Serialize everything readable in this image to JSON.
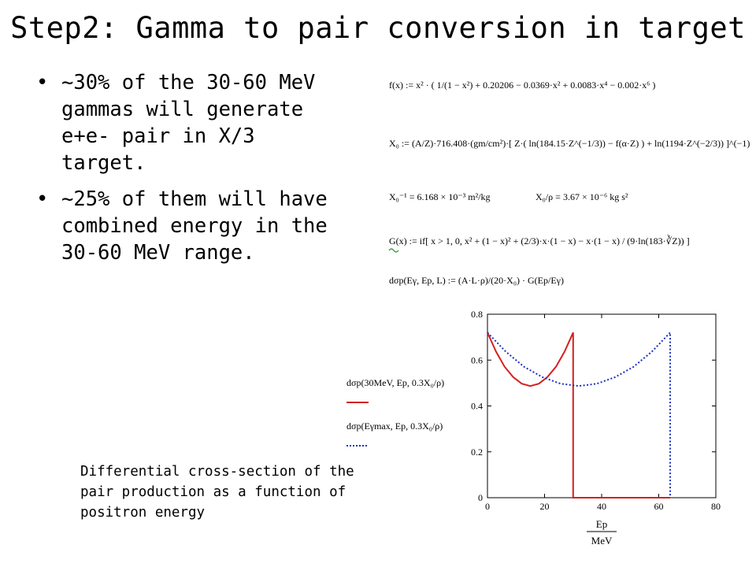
{
  "slide": {
    "title": "Step2: Gamma to pair conversion in target",
    "bullets": [
      "~30% of the 30-60 MeV gammas will generate e+e- pair in X/3 target.",
      "~25% of them will have combined energy in the 30-60 MeV range."
    ],
    "caption": "Differential cross-section of the pair production as a function of positron energy"
  },
  "equations": {
    "f": "f(x) := x² · ( 1/(1 − x²) + 0.20206 − 0.0369·x² + 0.0083·x⁴ − 0.002·x⁶ )",
    "X0": "X₀ := (A/Z)·716.408·(gm/cm²)·[ Z·( ln(184.15·Z^(−1/3)) − f(α·Z) ) + ln(1194·Z^(−2/3)) ]^(−1)",
    "X0inv": "X₀⁻¹ = 6.168 × 10⁻³ m²/kg",
    "X0rho": "X₀/ρ = 3.67 × 10⁻⁶ kg s²",
    "G": "G(x) := if[ x > 1, 0, x² + (1 − x)² + (2/3)·x·(1 − x) − x·(1 − x) / (9·ln(183·∛Z)) ]",
    "dsigma": "dσp(Eγ, Ep, L) := (A·L·ρ)/(20·X₀) · G(Ep/Eγ)"
  },
  "chart_data": {
    "type": "line",
    "xlim": [
      0,
      80
    ],
    "ylim": [
      0,
      0.8
    ],
    "xticks": [
      "0",
      "20",
      "40",
      "60",
      "80"
    ],
    "yticks": [
      "0",
      "0.2",
      "0.4",
      "0.6",
      "0.8"
    ],
    "xlabel_num": "Ep",
    "xlabel_den": "MeV",
    "legend": {
      "red": "dσp(30MeV, Ep, 0.3X₀/ρ)",
      "blue": "dσp(Eγmax, Ep, 0.3X₀/ρ)"
    },
    "series": [
      {
        "color": "#d42020",
        "style": "solid",
        "x": [
          0,
          3,
          6,
          9,
          12,
          15,
          18,
          21,
          24,
          27,
          30,
          30,
          64
        ],
        "y": [
          0.72,
          0.637,
          0.571,
          0.526,
          0.497,
          0.487,
          0.497,
          0.526,
          0.571,
          0.637,
          0.72,
          0,
          0
        ]
      },
      {
        "color": "#1a2fc0",
        "style": "dotted",
        "x": [
          0,
          6.4,
          12.8,
          19.2,
          25.6,
          32,
          38.4,
          44.8,
          51.2,
          57.6,
          64,
          64
        ],
        "y": [
          0.72,
          0.637,
          0.571,
          0.526,
          0.497,
          0.487,
          0.497,
          0.526,
          0.571,
          0.637,
          0.72,
          0
        ]
      }
    ]
  }
}
